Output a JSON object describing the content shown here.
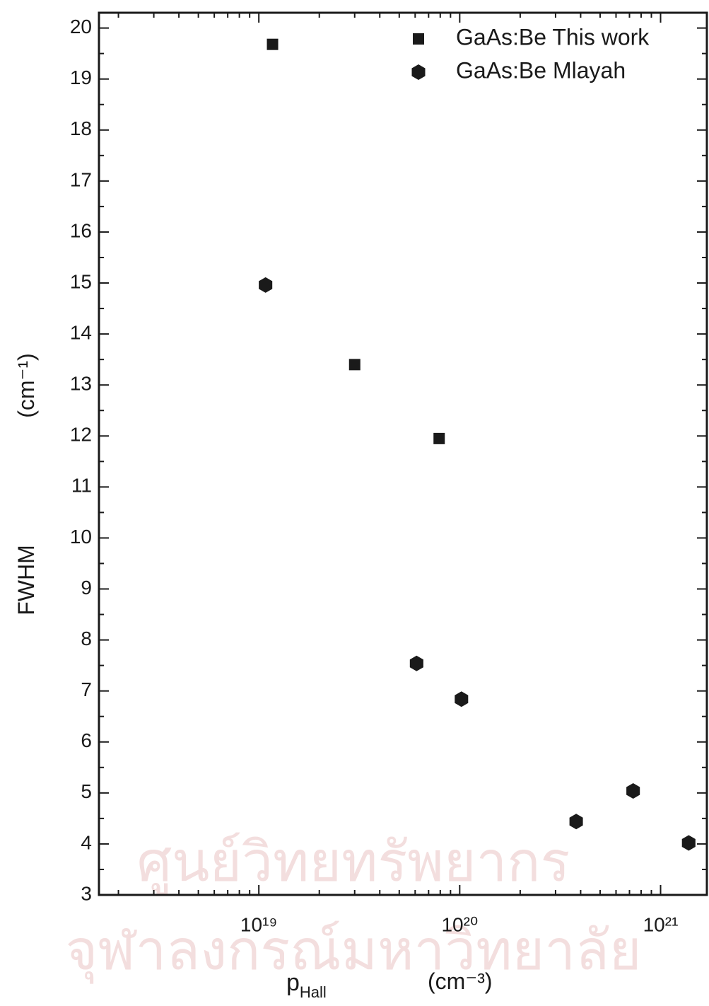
{
  "chart_data": {
    "type": "scatter",
    "xlabel": "p",
    "xlabel_sub": "Hall",
    "xlabel_unit": "(cm⁻³)",
    "ylabel": "FWHM",
    "ylabel_unit": "(cm⁻¹)",
    "xscale": "log",
    "xlim": [
      1.6e+18,
      1.7e+21
    ],
    "ylim": [
      3,
      20.3
    ],
    "xticks": [
      {
        "value": 1e+19,
        "label": "10¹⁹"
      },
      {
        "value": 1e+20,
        "label": "10²⁰"
      },
      {
        "value": 1e+21,
        "label": "10²¹"
      }
    ],
    "xminorticks": [
      2e+18,
      3e+18,
      4e+18,
      5e+18,
      6e+18,
      7e+18,
      8e+18,
      9e+18,
      2e+19,
      3e+19,
      4e+19,
      5e+19,
      6e+19,
      7e+19,
      8e+19,
      9e+19,
      2e+20,
      3e+20,
      4e+20,
      5e+20,
      6e+20,
      7e+20,
      8e+20,
      9e+20
    ],
    "yticks": [
      3,
      4,
      5,
      6,
      7,
      8,
      9,
      10,
      11,
      12,
      13,
      14,
      15,
      16,
      17,
      18,
      19,
      20
    ],
    "yminorticks": [
      3.5,
      4.5,
      5.5,
      6.5,
      7.5,
      8.5,
      9.5,
      10.5,
      11.5,
      12.5,
      13.5,
      14.5,
      15.5,
      16.5,
      17.5,
      18.5,
      19.5
    ],
    "legend": "top-right",
    "series": [
      {
        "name": "GaAs:Be This work",
        "marker": "square",
        "color": "#1a1a1a",
        "x": [
          1.17e+19,
          3e+19,
          7.9e+19
        ],
        "values": [
          19.68,
          13.4,
          11.95
        ]
      },
      {
        "name": "GaAs:Be Mlayah",
        "marker": "hexagon",
        "color": "#1a1a1a",
        "x": [
          1.08e+19,
          6.1e+19,
          1.02e+20,
          3.8e+20,
          7.3e+20,
          1.38e+21
        ],
        "values": [
          14.96,
          7.54,
          6.84,
          4.44,
          5.04,
          4.02
        ]
      }
    ],
    "watermark": [
      "ศูนย์วิทยทรัพยากร",
      "จุฬาลงกรณ์มหาวิทยาลัย"
    ]
  }
}
